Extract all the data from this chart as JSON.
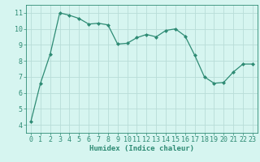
{
  "x": [
    0,
    1,
    2,
    3,
    4,
    5,
    6,
    7,
    8,
    9,
    10,
    11,
    12,
    13,
    14,
    15,
    16,
    17,
    18,
    19,
    20,
    21,
    22,
    23
  ],
  "y": [
    4.2,
    6.6,
    8.4,
    11.0,
    10.85,
    10.65,
    10.3,
    10.35,
    10.25,
    9.05,
    9.1,
    9.45,
    9.65,
    9.5,
    9.9,
    10.0,
    9.55,
    8.35,
    7.0,
    6.6,
    6.65,
    7.3,
    7.8,
    7.8
  ],
  "line_color": "#2e8b74",
  "marker": "D",
  "marker_size": 2.0,
  "bg_color": "#d6f5f0",
  "grid_color": "#b8ddd8",
  "xlabel": "Humidex (Indice chaleur)",
  "xlim": [
    -0.5,
    23.5
  ],
  "ylim": [
    3.5,
    11.5
  ],
  "yticks": [
    4,
    5,
    6,
    7,
    8,
    9,
    10,
    11
  ],
  "xticks": [
    0,
    1,
    2,
    3,
    4,
    5,
    6,
    7,
    8,
    9,
    10,
    11,
    12,
    13,
    14,
    15,
    16,
    17,
    18,
    19,
    20,
    21,
    22,
    23
  ],
  "tick_fontsize": 6.0,
  "xlabel_fontsize": 6.5
}
